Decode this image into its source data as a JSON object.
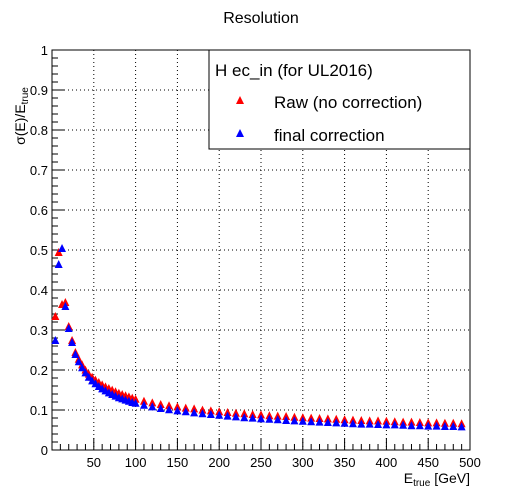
{
  "chart_data": {
    "type": "scatter",
    "title": "Resolution",
    "xlabel_main": "E",
    "xlabel_sub": "true",
    "xlabel_unit": " [GeV]",
    "ylabel_main": "σ(E)/E",
    "ylabel_sub": "true",
    "xlim": [
      0,
      500
    ],
    "ylim": [
      0,
      1
    ],
    "xticks": [
      50,
      100,
      150,
      200,
      250,
      300,
      350,
      400,
      450,
      500
    ],
    "yticks": [
      0,
      0.1,
      0.2,
      0.3,
      0.4,
      0.5,
      0.6,
      0.7,
      0.8,
      0.9,
      1
    ],
    "ytick_labels": [
      "0",
      "0.1",
      "0.2",
      "0.3",
      "0.4",
      "0.5",
      "0.6",
      "0.7",
      "0.8",
      "0.9",
      "1"
    ],
    "grid": true,
    "legend": {
      "title": "H ec_in (for UL2016)",
      "position": "top-right"
    },
    "series": [
      {
        "name": "Raw (no correction)",
        "color": "#ff0000",
        "marker": "triangle-up",
        "x": [
          4,
          8,
          12,
          16,
          20,
          24,
          28,
          32,
          36,
          40,
          44,
          48,
          52,
          56,
          60,
          64,
          68,
          72,
          76,
          80,
          84,
          88,
          92,
          96,
          100,
          110,
          120,
          130,
          140,
          150,
          160,
          170,
          180,
          190,
          200,
          210,
          220,
          230,
          240,
          250,
          260,
          270,
          280,
          290,
          300,
          310,
          320,
          330,
          340,
          350,
          360,
          370,
          380,
          390,
          400,
          410,
          420,
          430,
          440,
          450,
          460,
          470,
          480,
          490
        ],
        "y": [
          0.335,
          0.495,
          0.365,
          0.37,
          0.31,
          0.275,
          0.245,
          0.228,
          0.214,
          0.201,
          0.191,
          0.183,
          0.176,
          0.17,
          0.164,
          0.159,
          0.155,
          0.151,
          0.147,
          0.143,
          0.14,
          0.137,
          0.134,
          0.131,
          0.128,
          0.123,
          0.119,
          0.115,
          0.112,
          0.109,
          0.106,
          0.104,
          0.101,
          0.099,
          0.097,
          0.095,
          0.093,
          0.092,
          0.09,
          0.089,
          0.087,
          0.086,
          0.085,
          0.083,
          0.082,
          0.081,
          0.08,
          0.079,
          0.078,
          0.077,
          0.076,
          0.075,
          0.074,
          0.074,
          0.073,
          0.072,
          0.071,
          0.071,
          0.07,
          0.069,
          0.069,
          0.068,
          0.068,
          0.067
        ]
      },
      {
        "name": "final correction",
        "color": "#0000ff",
        "marker": "triangle-up",
        "x": [
          4,
          8,
          12,
          16,
          20,
          24,
          28,
          32,
          36,
          40,
          44,
          48,
          52,
          56,
          60,
          64,
          68,
          72,
          76,
          80,
          84,
          88,
          92,
          96,
          100,
          110,
          120,
          130,
          140,
          150,
          160,
          170,
          180,
          190,
          200,
          210,
          220,
          230,
          240,
          250,
          260,
          270,
          280,
          290,
          300,
          310,
          320,
          330,
          340,
          350,
          360,
          370,
          380,
          390,
          400,
          410,
          420,
          430,
          440,
          450,
          460,
          470,
          480,
          490
        ],
        "y": [
          0.275,
          0.465,
          0.505,
          0.36,
          0.305,
          0.27,
          0.24,
          0.222,
          0.207,
          0.194,
          0.183,
          0.174,
          0.167,
          0.16,
          0.154,
          0.149,
          0.144,
          0.14,
          0.136,
          0.132,
          0.129,
          0.126,
          0.123,
          0.12,
          0.118,
          0.113,
          0.109,
          0.105,
          0.102,
          0.099,
          0.097,
          0.094,
          0.092,
          0.09,
          0.088,
          0.086,
          0.084,
          0.082,
          0.081,
          0.079,
          0.078,
          0.077,
          0.075,
          0.074,
          0.073,
          0.072,
          0.071,
          0.07,
          0.069,
          0.068,
          0.067,
          0.066,
          0.066,
          0.065,
          0.064,
          0.064,
          0.063,
          0.062,
          0.062,
          0.061,
          0.061,
          0.06,
          0.06,
          0.059
        ]
      }
    ]
  }
}
